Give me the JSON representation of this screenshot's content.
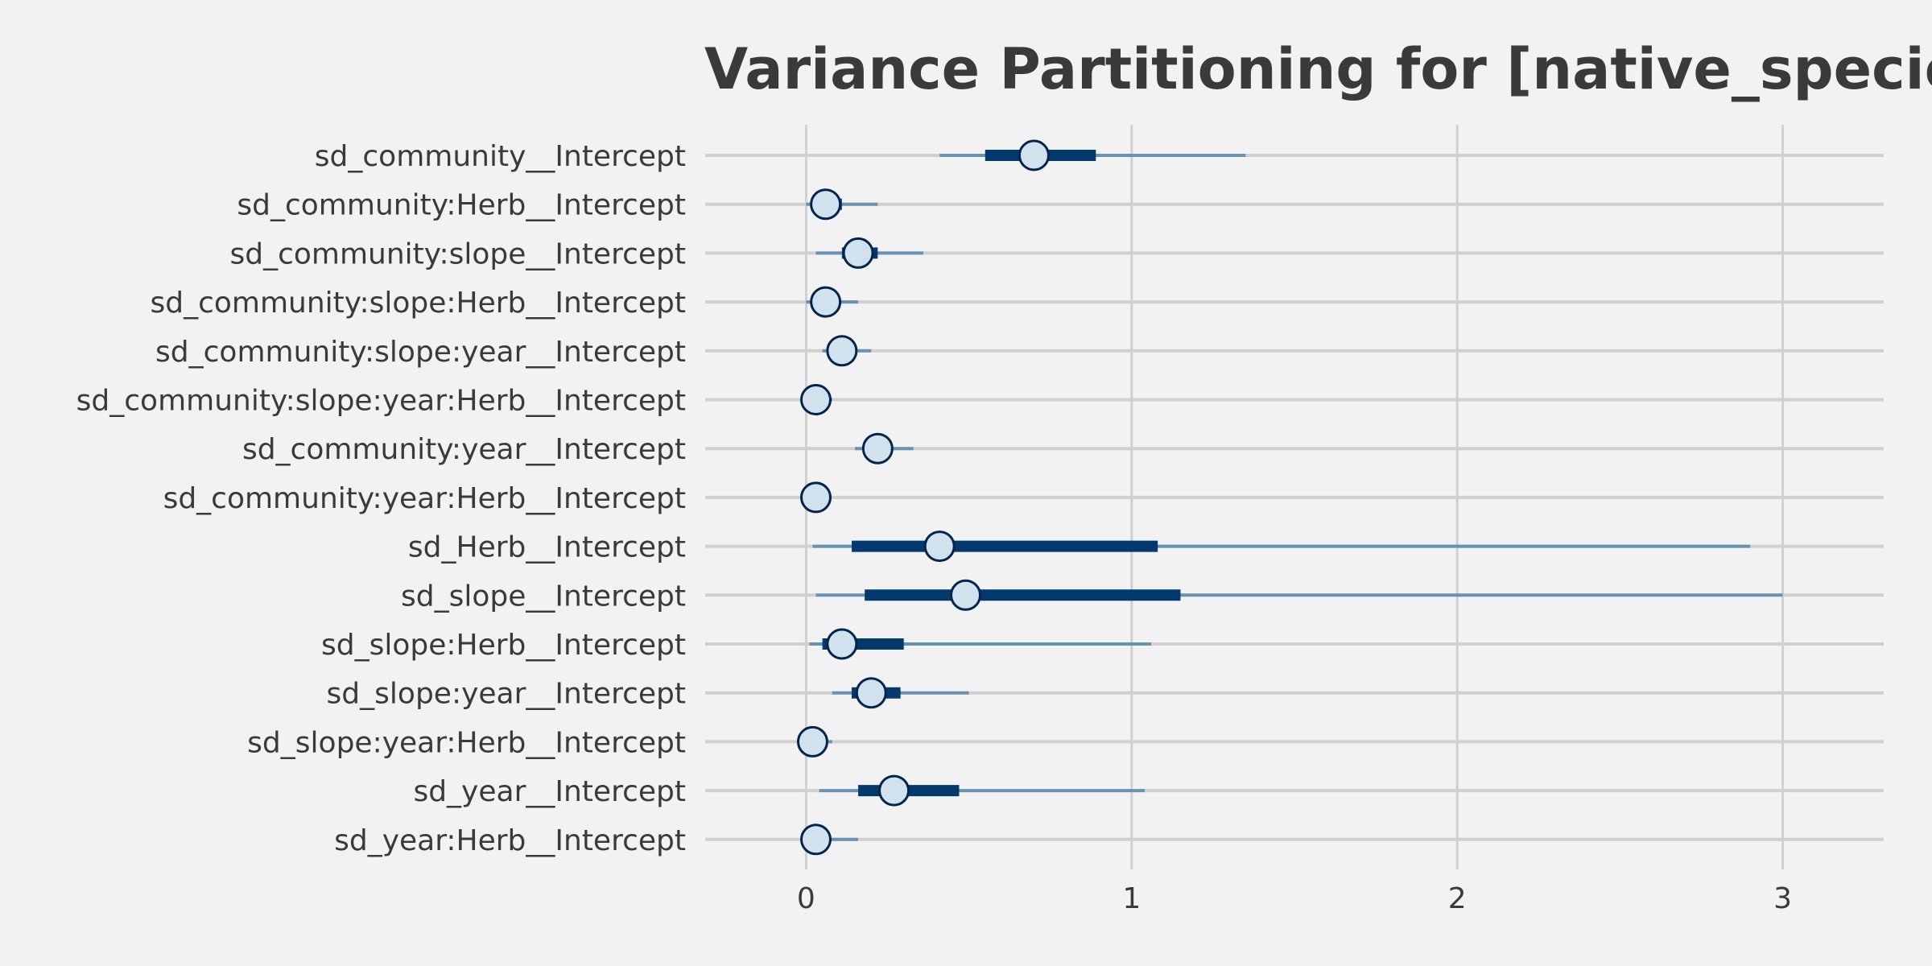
{
  "chart_data": {
    "type": "interval",
    "title": "Variance Partitioning for [native_species_",
    "xlabel": "",
    "ylabel": "",
    "xlim": [
      -0.31,
      3.31
    ],
    "x_ticks": [
      0,
      1,
      2,
      3
    ],
    "x_tick_labels": [
      "0",
      "1",
      "2",
      "3"
    ],
    "grid": true,
    "colors": {
      "outer_interval": "#6793b2",
      "inner_interval": "#03396c",
      "point_fill": "#d2e1ee",
      "point_stroke": "#03254c",
      "grid": "#d0d0d0",
      "text": "#3a3a3a",
      "background": "#f2f2f2"
    },
    "parameters": [
      {
        "label": "sd_community__Intercept",
        "median": 0.7,
        "inner": [
          0.55,
          0.89
        ],
        "outer": [
          0.41,
          1.35
        ]
      },
      {
        "label": "sd_community:Herb__Intercept",
        "median": 0.06,
        "inner": [
          0.02,
          0.11
        ],
        "outer": [
          0.0,
          0.22
        ]
      },
      {
        "label": "sd_community:slope__Intercept",
        "median": 0.16,
        "inner": [
          0.11,
          0.22
        ],
        "outer": [
          0.03,
          0.36
        ]
      },
      {
        "label": "sd_community:slope:Herb__Intercept",
        "median": 0.06,
        "inner": [
          0.02,
          0.09
        ],
        "outer": [
          0.0,
          0.16
        ]
      },
      {
        "label": "sd_community:slope:year__Intercept",
        "median": 0.11,
        "inner": [
          0.08,
          0.14
        ],
        "outer": [
          0.05,
          0.2
        ]
      },
      {
        "label": "sd_community:slope:year:Herb__Intercept",
        "median": 0.03,
        "inner": [
          0.01,
          0.05
        ],
        "outer": [
          0.0,
          0.08
        ]
      },
      {
        "label": "sd_community:year__Intercept",
        "median": 0.22,
        "inner": [
          0.19,
          0.26
        ],
        "outer": [
          0.15,
          0.33
        ]
      },
      {
        "label": "sd_community:year:Herb__Intercept",
        "median": 0.03,
        "inner": [
          0.01,
          0.05
        ],
        "outer": [
          0.0,
          0.07
        ]
      },
      {
        "label": "sd_Herb__Intercept",
        "median": 0.41,
        "inner": [
          0.14,
          1.08
        ],
        "outer": [
          0.02,
          2.9
        ]
      },
      {
        "label": "sd_slope__Intercept",
        "median": 0.49,
        "inner": [
          0.18,
          1.15
        ],
        "outer": [
          0.03,
          3.0
        ]
      },
      {
        "label": "sd_slope:Herb__Intercept",
        "median": 0.11,
        "inner": [
          0.05,
          0.3
        ],
        "outer": [
          0.01,
          1.06
        ]
      },
      {
        "label": "sd_slope:year__Intercept",
        "median": 0.2,
        "inner": [
          0.14,
          0.29
        ],
        "outer": [
          0.08,
          0.5
        ]
      },
      {
        "label": "sd_slope:year:Herb__Intercept",
        "median": 0.02,
        "inner": [
          0.01,
          0.04
        ],
        "outer": [
          0.0,
          0.08
        ]
      },
      {
        "label": "sd_year__Intercept",
        "median": 0.27,
        "inner": [
          0.16,
          0.47
        ],
        "outer": [
          0.04,
          1.04
        ]
      },
      {
        "label": "sd_year:Herb__Intercept",
        "median": 0.03,
        "inner": [
          0.01,
          0.07
        ],
        "outer": [
          0.0,
          0.16
        ]
      }
    ]
  }
}
